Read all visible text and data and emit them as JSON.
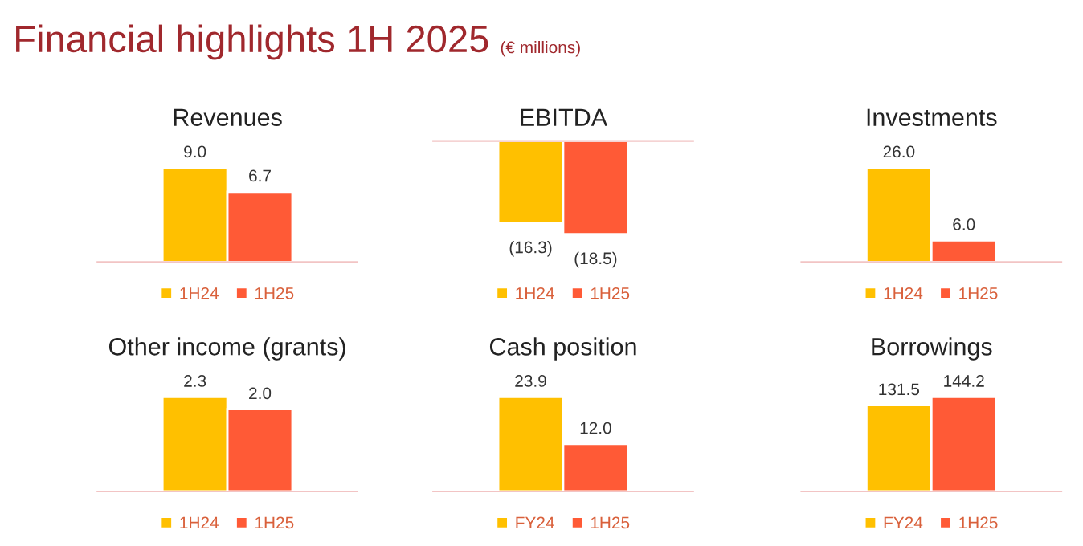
{
  "chart_data": [
    {
      "type": "bar",
      "title": "Revenues",
      "categories": [
        null
      ],
      "legend": "bottom",
      "annotations": [
        "Financial highlights 1H 2025",
        "(€ millions)"
      ],
      "series": [
        {
          "name": "1H24",
          "color": "#ffc000",
          "values": [
            9.0
          ],
          "value_labels": [
            "9.0"
          ]
        },
        {
          "name": "1H25",
          "color": "#ff5a36",
          "values": [
            6.7
          ],
          "value_labels": [
            "6.7"
          ]
        }
      ]
    },
    {
      "type": "bar",
      "title": "EBITDA",
      "categories": [
        null
      ],
      "legend": "bottom",
      "series": [
        {
          "name": "1H24",
          "color": "#ffc000",
          "values": [
            -16.3
          ],
          "value_labels": [
            "(16.3)"
          ]
        },
        {
          "name": "1H25",
          "color": "#ff5a36",
          "values": [
            -18.5
          ],
          "value_labels": [
            "(18.5)"
          ]
        }
      ]
    },
    {
      "type": "bar",
      "title": "Investments",
      "categories": [
        null
      ],
      "legend": "bottom",
      "series": [
        {
          "name": "1H24",
          "color": "#ffc000",
          "values": [
            26.0
          ],
          "value_labels": [
            "26.0"
          ]
        },
        {
          "name": "1H25",
          "color": "#ff5a36",
          "values": [
            6.0
          ],
          "value_labels": [
            "6.0"
          ]
        }
      ]
    },
    {
      "type": "bar",
      "title": "Other income (grants)",
      "categories": [
        null
      ],
      "legend": "bottom",
      "series": [
        {
          "name": "1H24",
          "color": "#ffc000",
          "values": [
            2.3
          ],
          "value_labels": [
            "2.3"
          ]
        },
        {
          "name": "1H25",
          "color": "#ff5a36",
          "values": [
            2.0
          ],
          "value_labels": [
            "2.0"
          ]
        }
      ]
    },
    {
      "type": "bar",
      "title": "Cash position",
      "categories": [
        null
      ],
      "legend": "bottom",
      "series": [
        {
          "name": "FY24",
          "color": "#ffc000",
          "values": [
            23.9
          ],
          "value_labels": [
            "23.9"
          ]
        },
        {
          "name": "1H25",
          "color": "#ff5a36",
          "values": [
            12.0
          ],
          "value_labels": [
            "12.0"
          ]
        }
      ]
    },
    {
      "type": "bar",
      "title": "Borrowings",
      "categories": [
        null
      ],
      "legend": "bottom",
      "series": [
        {
          "name": "FY24",
          "color": "#ffc000",
          "values": [
            131.5
          ],
          "value_labels": [
            "131.5"
          ]
        },
        {
          "name": "1H25",
          "color": "#ff5a36",
          "values": [
            144.2
          ],
          "value_labels": [
            "144.2"
          ]
        }
      ]
    }
  ]
}
